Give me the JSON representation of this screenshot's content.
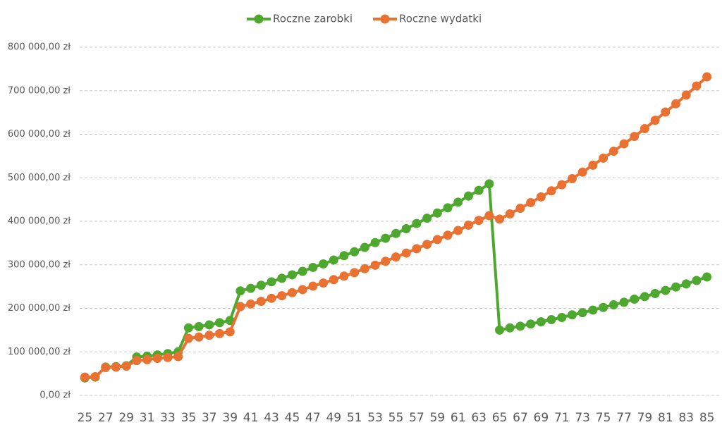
{
  "chart_data": {
    "type": "line",
    "x": [
      25,
      26,
      27,
      28,
      29,
      30,
      31,
      32,
      33,
      34,
      35,
      36,
      37,
      38,
      39,
      40,
      41,
      42,
      43,
      44,
      45,
      46,
      47,
      48,
      49,
      50,
      51,
      52,
      53,
      54,
      55,
      56,
      57,
      58,
      59,
      60,
      61,
      62,
      63,
      64,
      65,
      66,
      67,
      68,
      69,
      70,
      71,
      72,
      73,
      74,
      75,
      76,
      77,
      78,
      79,
      80,
      81,
      82,
      83,
      84,
      85
    ],
    "series": [
      {
        "name": "Roczne zarobki",
        "color": "#4ea72e",
        "values": [
          40000,
          42000,
          65000,
          66000,
          68000,
          88000,
          90000,
          93000,
          96000,
          100000,
          155000,
          158000,
          162000,
          167000,
          172000,
          240000,
          246000,
          253000,
          261000,
          269000,
          277000,
          285000,
          294000,
          302000,
          311000,
          321000,
          330000,
          340000,
          351000,
          361000,
          372000,
          383000,
          395000,
          407000,
          419000,
          431000,
          444000,
          458000,
          471000,
          486000,
          150000,
          155000,
          159000,
          164000,
          169000,
          174000,
          179000,
          185000,
          190000,
          196000,
          202000,
          208000,
          214000,
          221000,
          227000,
          234000,
          241000,
          249000,
          256000,
          264000,
          272000
        ]
      },
      {
        "name": "Roczne wydatki",
        "color": "#e97132",
        "values": [
          42000,
          43000,
          64000,
          65000,
          67000,
          80000,
          82000,
          85000,
          87000,
          89000,
          131000,
          134000,
          138000,
          142000,
          146000,
          204000,
          210000,
          216000,
          223000,
          229000,
          236000,
          243000,
          251000,
          258000,
          266000,
          274000,
          282000,
          291000,
          299000,
          308000,
          318000,
          327000,
          337000,
          347000,
          358000,
          368000,
          379000,
          391000,
          402000,
          413000,
          405000,
          417000,
          430000,
          443000,
          456000,
          470000,
          484000,
          498000,
          513000,
          529000,
          545000,
          561000,
          578000,
          595000,
          613000,
          632000,
          651000,
          670000,
          690000,
          711000,
          732000
        ]
      }
    ],
    "xlim": [
      24.5,
      85.5
    ],
    "xticks": [
      25,
      27,
      29,
      31,
      33,
      35,
      37,
      39,
      41,
      43,
      45,
      47,
      49,
      51,
      53,
      55,
      57,
      59,
      61,
      63,
      65,
      67,
      69,
      71,
      73,
      75,
      77,
      79,
      81,
      83,
      85
    ],
    "ylim": [
      0,
      800000
    ],
    "yticks": [
      {
        "value": 0,
        "label": "0,00 zł"
      },
      {
        "value": 100000,
        "label": "100 000,00 zł"
      },
      {
        "value": 200000,
        "label": "200 000,00 zł"
      },
      {
        "value": 300000,
        "label": "300 000,00 zł"
      },
      {
        "value": 400000,
        "label": "400 000,00 zł"
      },
      {
        "value": 500000,
        "label": "500 000,00 zł"
      },
      {
        "value": 600000,
        "label": "600 000,00 zł"
      },
      {
        "value": 700000,
        "label": "700 000,00 zł"
      },
      {
        "value": 800000,
        "label": "800 000,00 zł"
      }
    ],
    "grid": true,
    "legend": "top"
  }
}
